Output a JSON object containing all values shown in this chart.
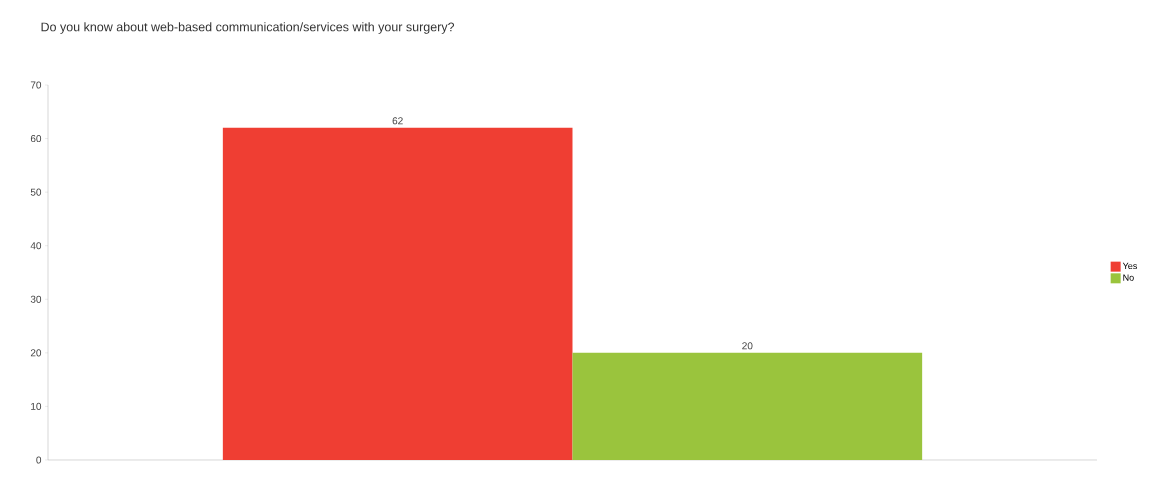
{
  "chart_data": {
    "type": "bar",
    "title": "Do you know about web-based communication/services with your surgery?",
    "categories": [
      null
    ],
    "series": [
      {
        "name": "Yes",
        "color": "#ef3e33",
        "values": [
          62
        ]
      },
      {
        "name": "No",
        "color": "#9ac43d",
        "values": [
          20
        ]
      }
    ],
    "ylim": [
      0,
      70
    ],
    "yticks": [
      0,
      10,
      20,
      30,
      40,
      50,
      60,
      70
    ],
    "data_labels": true,
    "legend": "right",
    "grid": false
  }
}
